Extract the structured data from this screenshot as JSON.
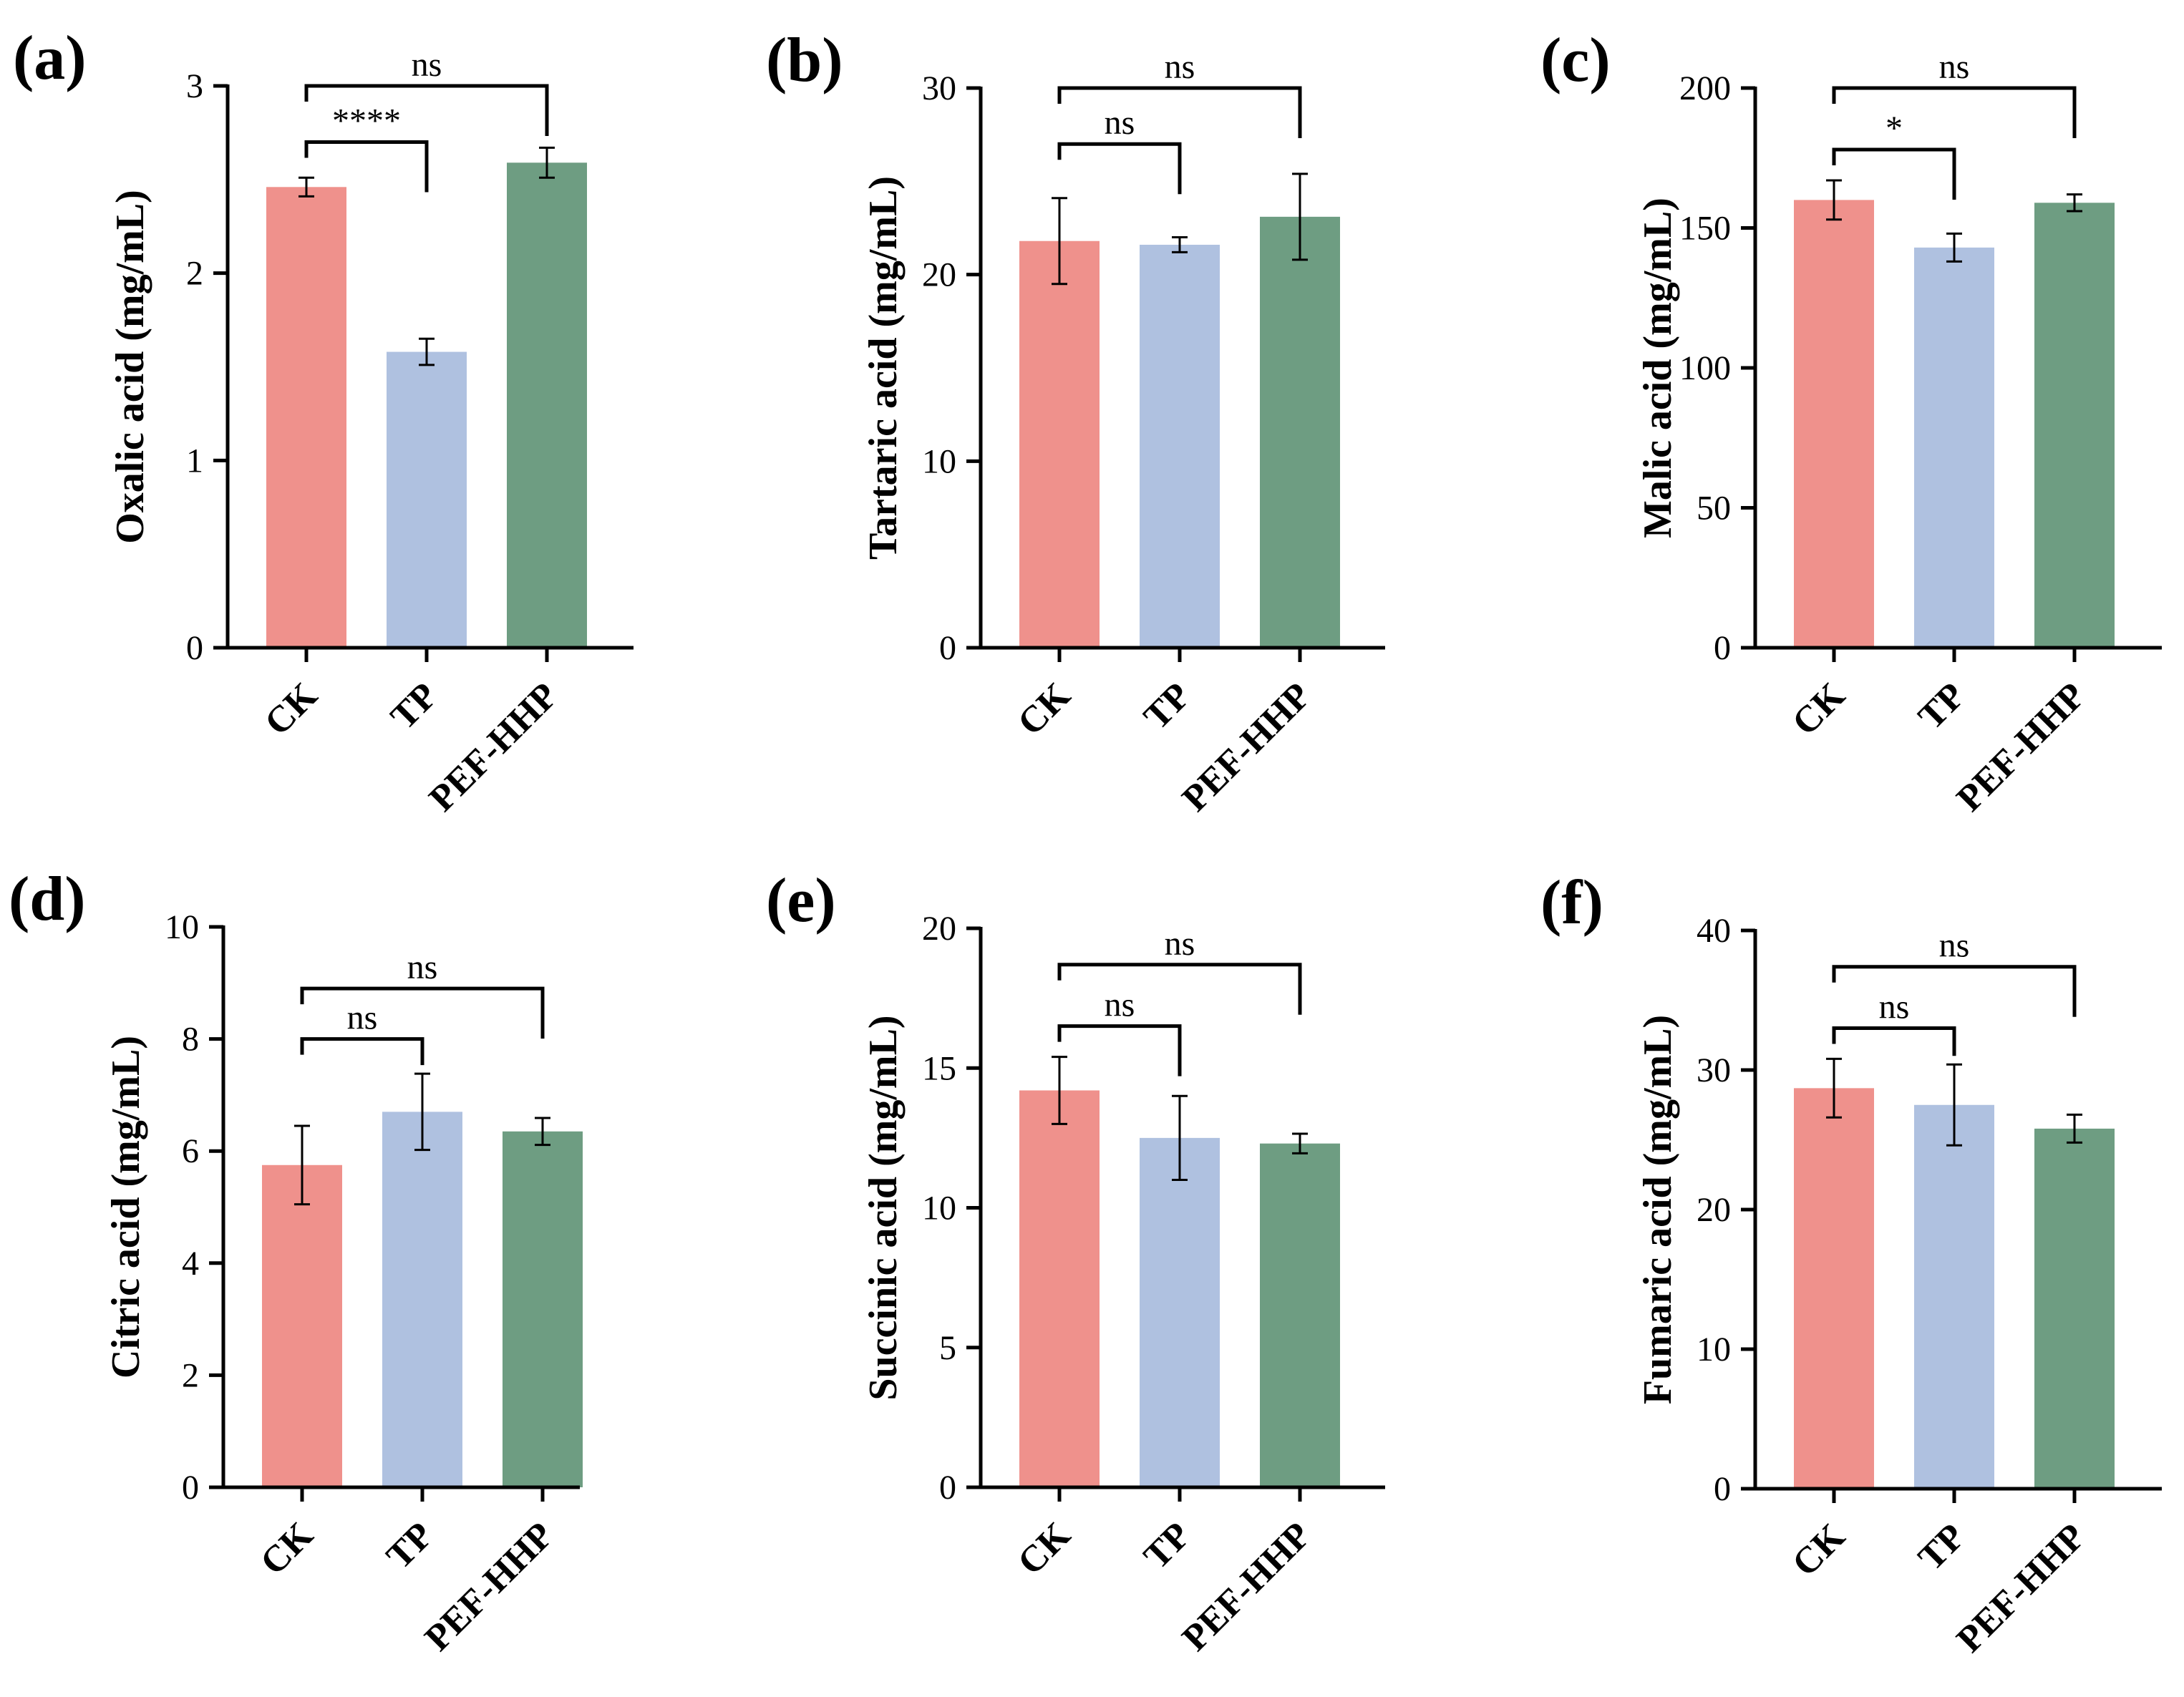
{
  "colors": {
    "CK": "#ef918c",
    "TP": "#afc1e0",
    "PEF-HHP": "#6e9d82"
  },
  "chart_data": [
    {
      "type": "bar",
      "panel_label": "(a)",
      "categories": [
        "CK",
        "TP",
        "PEF-HHP"
      ],
      "values": [
        2.46,
        1.58,
        2.59
      ],
      "errors": [
        0.05,
        0.07,
        0.08
      ],
      "xlabel": "",
      "ylabel": "Oxalic acid (mg/mL)",
      "ylim": [
        0,
        3
      ],
      "yticks": [
        "0",
        "1",
        "2",
        "3"
      ],
      "comparisons": [
        {
          "from": 0,
          "to": 1,
          "text": "****",
          "y": 2.7
        },
        {
          "from": 0,
          "to": 2,
          "text": "ns",
          "y": 3.0
        }
      ]
    },
    {
      "type": "bar",
      "panel_label": "(b)",
      "categories": [
        "CK",
        "TP",
        "PEF-HHP"
      ],
      "values": [
        21.8,
        21.6,
        23.1
      ],
      "errors": [
        2.3,
        0.4,
        2.3
      ],
      "xlabel": "",
      "ylabel": "Tartaric acid (mg/mL)",
      "ylim": [
        0,
        30
      ],
      "yticks": [
        "0",
        "10",
        "20",
        "30"
      ],
      "comparisons": [
        {
          "from": 0,
          "to": 1,
          "text": "ns",
          "y": 27
        },
        {
          "from": 0,
          "to": 2,
          "text": "ns",
          "y": 30
        }
      ]
    },
    {
      "type": "bar",
      "panel_label": "(c)",
      "categories": [
        "CK",
        "TP",
        "PEF-HHP"
      ],
      "values": [
        160,
        143,
        159
      ],
      "errors": [
        7,
        5,
        3
      ],
      "xlabel": "",
      "ylabel": "Malic acid (mg/mL)",
      "ylim": [
        0,
        200
      ],
      "yticks": [
        "0",
        "50",
        "100",
        "150",
        "200"
      ],
      "comparisons": [
        {
          "from": 0,
          "to": 1,
          "text": "*",
          "y": 178
        },
        {
          "from": 0,
          "to": 2,
          "text": "ns",
          "y": 200
        }
      ]
    },
    {
      "type": "bar",
      "panel_label": "(d)",
      "categories": [
        "CK",
        "TP",
        "PEF-HHP"
      ],
      "values": [
        5.75,
        6.7,
        6.35
      ],
      "errors": [
        0.7,
        0.68,
        0.24
      ],
      "xlabel": "",
      "ylabel": "Citric acid (mg/mL)",
      "ylim": [
        0,
        10
      ],
      "yticks": [
        "0",
        "2",
        "4",
        "6",
        "8",
        "10"
      ],
      "comparisons": [
        {
          "from": 0,
          "to": 1,
          "text": "ns",
          "y": 8.0
        },
        {
          "from": 0,
          "to": 2,
          "text": "ns",
          "y": 8.9
        }
      ]
    },
    {
      "type": "bar",
      "panel_label": "(e)",
      "categories": [
        "CK",
        "TP",
        "PEF-HHP"
      ],
      "values": [
        14.2,
        12.5,
        12.3
      ],
      "errors": [
        1.2,
        1.5,
        0.35
      ],
      "xlabel": "",
      "ylabel": "Succinic acid (mg/mL)",
      "ylim": [
        0,
        20
      ],
      "yticks": [
        "0",
        "5",
        "10",
        "15",
        "20"
      ],
      "comparisons": [
        {
          "from": 0,
          "to": 1,
          "text": "ns",
          "y": 16.5
        },
        {
          "from": 0,
          "to": 2,
          "text": "ns",
          "y": 18.7
        }
      ]
    },
    {
      "type": "bar",
      "panel_label": "(f)",
      "categories": [
        "CK",
        "TP",
        "PEF-HHP"
      ],
      "values": [
        28.7,
        27.5,
        25.8
      ],
      "errors": [
        2.1,
        2.9,
        1.0
      ],
      "xlabel": "",
      "ylabel": "Fumaric acid (mg/mL)",
      "ylim": [
        0,
        40
      ],
      "yticks": [
        "0",
        "10",
        "20",
        "30",
        "40"
      ],
      "comparisons": [
        {
          "from": 0,
          "to": 1,
          "text": "ns",
          "y": 33
        },
        {
          "from": 0,
          "to": 2,
          "text": "ns",
          "y": 37.4
        }
      ]
    }
  ]
}
